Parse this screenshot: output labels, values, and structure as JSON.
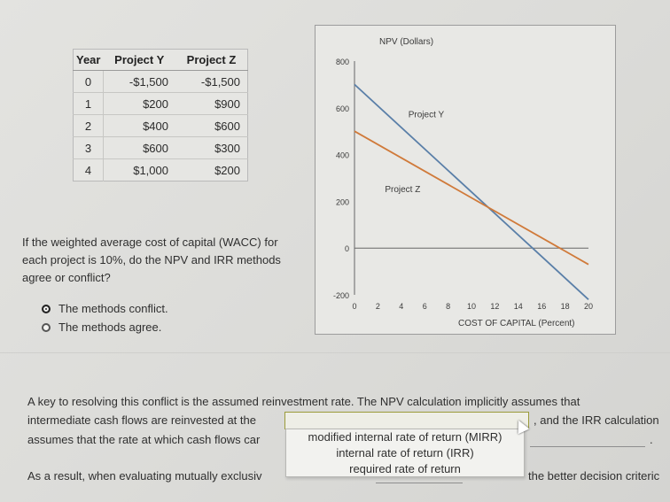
{
  "table": {
    "headers": [
      "Year",
      "Project Y",
      "Project Z"
    ],
    "rows": [
      [
        "0",
        "-$1,500",
        "-$1,500"
      ],
      [
        "1",
        "$200",
        "$900"
      ],
      [
        "2",
        "$400",
        "$600"
      ],
      [
        "3",
        "$600",
        "$300"
      ],
      [
        "4",
        "$1,000",
        "$200"
      ]
    ]
  },
  "question": {
    "text": "If the weighted average cost of capital (WACC) for each project is 10%, do the NPV and IRR methods agree or conflict?",
    "options": [
      "The methods conflict.",
      "The methods agree."
    ],
    "selected_index": 0
  },
  "chart_data": {
    "type": "line",
    "title": "NPV (Dollars)",
    "xlabel": "COST OF CAPITAL (Percent)",
    "ylabel": "NPV (Dollars)",
    "xlim": [
      0,
      20
    ],
    "ylim": [
      -200,
      800
    ],
    "x_ticks": [
      "0",
      "2",
      "4",
      "6",
      "8",
      "10",
      "12",
      "14",
      "16",
      "18",
      "20"
    ],
    "y_ticks": [
      "800",
      "600",
      "400",
      "200",
      "0",
      "-200"
    ],
    "series": [
      {
        "name": "Project Y",
        "color": "#5a7fa8",
        "x": [
          0,
          20
        ],
        "y": [
          700,
          -220
        ]
      },
      {
        "name": "Project Z",
        "color": "#d07a3a",
        "x": [
          0,
          20
        ],
        "y": [
          500,
          -70
        ]
      }
    ],
    "labels": [
      "Project Y",
      "Project Z"
    ]
  },
  "body": {
    "line1": "A key to resolving this conflict is the assumed reinvestment rate. The NPV calculation implicitly assumes that",
    "line2_start": "intermediate cash flows are reinvested at the",
    "line2_end": ", and the IRR calculation",
    "line3_start": "assumes that the rate at which cash flows car",
    "line4_start": "As a result, when evaluating mutually exclusiv",
    "line4_end": "the better decision criteric"
  },
  "dropdown": {
    "selected": "",
    "options": [
      "modified internal rate of return (MIRR)",
      "internal rate of return (IRR)",
      "required rate of return"
    ]
  }
}
